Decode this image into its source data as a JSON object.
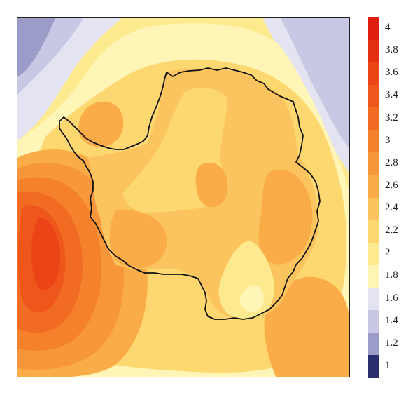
{
  "colorbar": {
    "ticks": [
      "4",
      "3.8",
      "3.6",
      "3.4",
      "3.2",
      "3",
      "2.8",
      "2.6",
      "2.4",
      "2.2",
      "2",
      "1.8",
      "1.6",
      "1.4",
      "1.2",
      "1"
    ],
    "bins": [
      {
        "min": 0.9,
        "max": 1.1,
        "color": "#2a2d6b"
      },
      {
        "min": 1.1,
        "max": 1.3,
        "color": "#9c9cc8"
      },
      {
        "min": 1.3,
        "max": 1.5,
        "color": "#c8c8e4"
      },
      {
        "min": 1.5,
        "max": 1.7,
        "color": "#e3e3f1"
      },
      {
        "min": 1.7,
        "max": 1.9,
        "color": "#fef5b6"
      },
      {
        "min": 1.9,
        "max": 2.1,
        "color": "#feea8e"
      },
      {
        "min": 2.1,
        "max": 2.3,
        "color": "#fdd870"
      },
      {
        "min": 2.3,
        "max": 2.5,
        "color": "#fcc45e"
      },
      {
        "min": 2.5,
        "max": 2.7,
        "color": "#f9ac48"
      },
      {
        "min": 2.7,
        "max": 2.9,
        "color": "#f7963a"
      },
      {
        "min": 2.9,
        "max": 3.1,
        "color": "#f5812d"
      },
      {
        "min": 3.1,
        "max": 3.3,
        "color": "#f26b23"
      },
      {
        "min": 3.3,
        "max": 3.5,
        "color": "#ef561c"
      },
      {
        "min": 3.5,
        "max": 3.7,
        "color": "#eb4417"
      },
      {
        "min": 3.7,
        "max": 3.9,
        "color": "#e63013"
      },
      {
        "min": 3.9,
        "max": 4.1,
        "color": "#e01e10"
      }
    ]
  },
  "map": {
    "coastline_color": "#111111",
    "palette": {
      "level_1_2": "#9c9cc8",
      "level_1_4": "#c8c8e4",
      "level_1_6": "#e3e3f1",
      "level_1_8": "#fef5b6",
      "level_2_0": "#feea8e",
      "level_2_2": "#fdd870",
      "level_2_4": "#fcc45e",
      "level_2_6": "#f9ac48",
      "level_2_8": "#f7963a",
      "level_3_0": "#f5812d",
      "level_3_2": "#f26b23",
      "level_3_4": "#ef561c",
      "level_3_6": "#eb4417"
    }
  }
}
